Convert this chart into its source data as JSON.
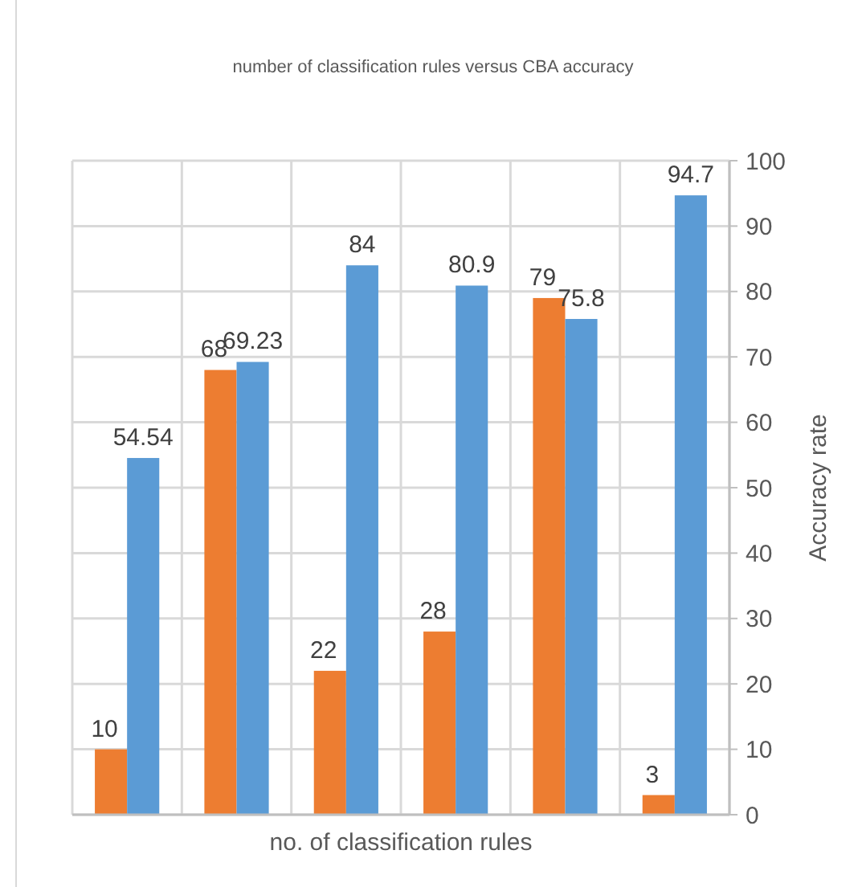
{
  "chart_data": {
    "type": "bar",
    "title": "number of classification rules versus CBA accuracy",
    "xlabel": "no. of classification rules",
    "ylabel": "Accuracy rate",
    "categories": [
      null,
      null,
      null,
      null,
      null,
      null
    ],
    "series": [
      {
        "color": "#ed7d31",
        "values": [
          10,
          68,
          22,
          28,
          79,
          3
        ]
      },
      {
        "color": "#5b9bd5",
        "values": [
          54.54,
          69.23,
          84,
          80.9,
          75.8,
          94.7
        ]
      }
    ],
    "ylim": [
      0,
      100
    ],
    "yticks": [
      0,
      10,
      20,
      30,
      40,
      50,
      60,
      70,
      80,
      90,
      100
    ],
    "grid": true,
    "data_labels": true
  }
}
